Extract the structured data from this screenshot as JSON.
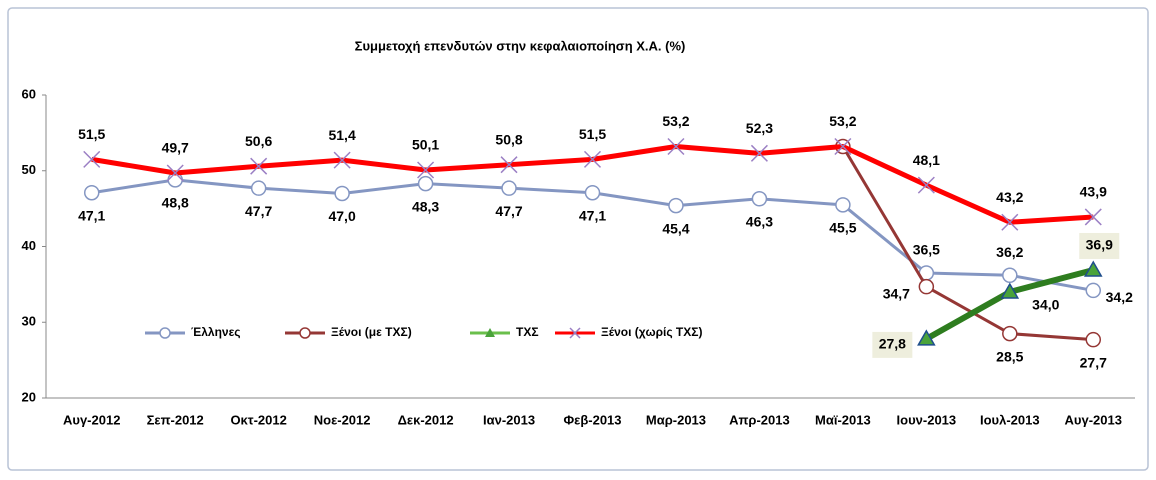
{
  "chart_data": {
    "type": "line",
    "title": "Συμμετοχή επενδυτών στην κεφαλαιοποίηση Χ.Α. (%)",
    "categories": [
      "Αυγ-2012",
      "Σεπ-2012",
      "Οκτ-2012",
      "Νοε-2012",
      "Δεκ-2012",
      "Ιαν-2013",
      "Φεβ-2013",
      "Μαρ-2013",
      "Απρ-2013",
      "Μαϊ-2013",
      "Ιουν-2013",
      "Ιουλ-2013",
      "Αυγ-2013"
    ],
    "ylim": [
      20,
      60
    ],
    "yticks": [
      20,
      30,
      40,
      50,
      60
    ],
    "legend": "inside-left",
    "series": [
      {
        "name": "Έλληνες",
        "color": "#8496c2",
        "marker": "circle",
        "values": [
          47.1,
          48.8,
          47.7,
          47.0,
          48.3,
          47.7,
          47.1,
          45.4,
          46.3,
          45.5,
          36.5,
          36.2,
          34.2
        ],
        "value_labels": [
          "47,1",
          "48,8",
          "47,7",
          "47,0",
          "48,3",
          "47,7",
          "47,1",
          "45,4",
          "46,3",
          "45,5",
          "36,5",
          "36,2",
          "34,2"
        ]
      },
      {
        "name": "Ξένοι (με ΤΧΣ)",
        "color": "#953735",
        "marker": "circle",
        "values": [
          null,
          null,
          null,
          null,
          null,
          null,
          null,
          null,
          null,
          53.2,
          34.7,
          28.5,
          27.7
        ],
        "value_labels": [
          null,
          null,
          null,
          null,
          null,
          null,
          null,
          null,
          null,
          null,
          "34,7",
          "28,5",
          "27,7"
        ]
      },
      {
        "name": "ΤΧΣ",
        "color": "#2e7d1f",
        "marker": "triangle",
        "values": [
          null,
          null,
          null,
          null,
          null,
          null,
          null,
          null,
          null,
          null,
          27.8,
          34.0,
          36.9
        ],
        "value_labels": [
          null,
          null,
          null,
          null,
          null,
          null,
          null,
          null,
          null,
          null,
          "27,8",
          "34,0",
          "36,9"
        ]
      },
      {
        "name": "Ξένοι (χωρίς ΤΧΣ)",
        "color": "#ff0000",
        "marker": "x",
        "values": [
          51.5,
          49.7,
          50.6,
          51.4,
          50.1,
          50.8,
          51.5,
          53.2,
          52.3,
          53.2,
          48.1,
          43.2,
          43.9
        ],
        "value_labels": [
          "51,5",
          "49,7",
          "50,6",
          "51,4",
          "50,1",
          "50,8",
          "51,5",
          "53,2",
          "52,3",
          "53,2",
          "48,1",
          "43,2",
          "43,9"
        ]
      }
    ]
  }
}
